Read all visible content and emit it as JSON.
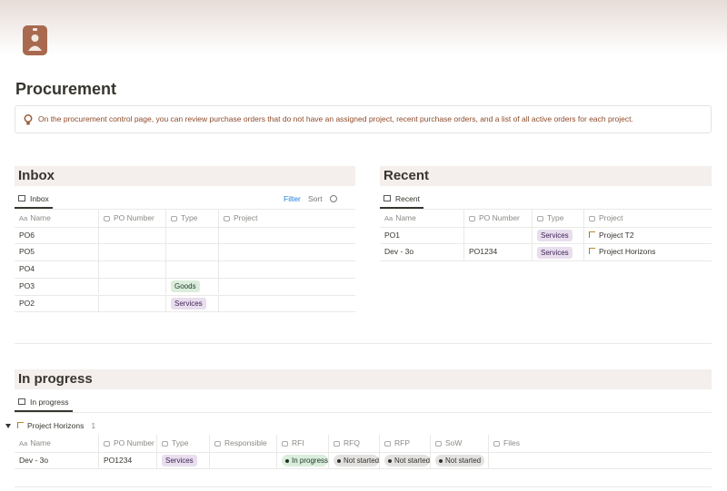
{
  "page": {
    "title": "Procurement",
    "callout": "On the procurement control page, you can review purchase orders that do not have an assigned project, recent purchase orders, and a list of all active orders for each project."
  },
  "inbox": {
    "heading": "Inbox",
    "tab": "Inbox",
    "filter": "Filter",
    "sort": "Sort",
    "columns": [
      {
        "icon": "Aa",
        "label": "Name"
      },
      {
        "label": "PO Number"
      },
      {
        "label": "Type"
      },
      {
        "label": "Project"
      }
    ],
    "rows": [
      [
        "PO6",
        null,
        null,
        null
      ],
      [
        "PO5",
        null,
        null,
        null
      ],
      [
        "PO4",
        null,
        null,
        null
      ],
      [
        "PO3",
        null,
        "Goods",
        null
      ],
      [
        "PO2",
        null,
        "Services",
        null
      ]
    ]
  },
  "recent": {
    "heading": "Recent",
    "tab": "Recent",
    "columns": [
      {
        "icon": "Aa",
        "label": "Name"
      },
      {
        "label": "PO Number"
      },
      {
        "label": "Type"
      },
      {
        "label": "Project"
      }
    ],
    "rows": [
      [
        "PO1",
        null,
        "Services",
        "Project T2"
      ],
      [
        "Dev - 3o",
        "PO1234",
        "Services",
        "Project Horizons"
      ]
    ]
  },
  "in_progress": {
    "heading": "In progress",
    "tab": "In progress",
    "group": {
      "name": "Project Horizons",
      "count": 1
    },
    "columns": [
      {
        "icon": "Aa",
        "label": "Name"
      },
      {
        "label": "PO Number"
      },
      {
        "label": "Type"
      },
      {
        "label": "Responsible"
      },
      {
        "label": "RFI"
      },
      {
        "label": "RFQ"
      },
      {
        "label": "RFP"
      },
      {
        "label": "SoW"
      },
      {
        "label": "Files"
      }
    ],
    "rows": [
      [
        "Dev - 3o",
        "PO1234",
        "Services",
        null,
        "In progress",
        "Not started",
        "Not started",
        "Not started",
        null
      ]
    ]
  }
}
